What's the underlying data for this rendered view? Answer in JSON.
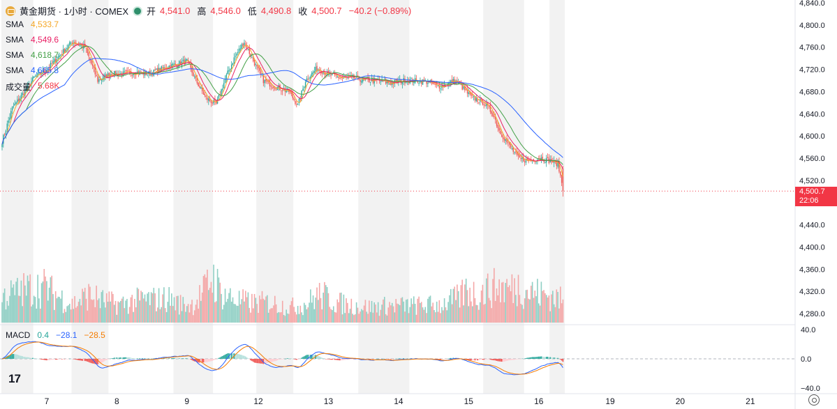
{
  "header": {
    "symbol_title": "黄金期货 · 1小时 · COMEX",
    "ohlc": [
      {
        "k": "开",
        "v": "4,541.0"
      },
      {
        "k": "高",
        "v": "4,546.0"
      },
      {
        "k": "低",
        "v": "4,490.8"
      },
      {
        "k": "收",
        "v": "4,500.7"
      }
    ],
    "change": "−40.2 (−0.89%)"
  },
  "legend": [
    {
      "name": "SMA",
      "value": "4,533.7",
      "color": "#f5a623"
    },
    {
      "name": "SMA",
      "value": "4,549.6",
      "color": "#e91e63"
    },
    {
      "name": "SMA",
      "value": "4,618.7",
      "color": "#43a047"
    },
    {
      "name": "SMA",
      "value": "4,665.8",
      "color": "#2962ff"
    },
    {
      "name": "成交量",
      "value": "5.68K",
      "color": "#f23645"
    }
  ],
  "macd_legend": {
    "name": "MACD",
    "v1": "0.4",
    "v2": "−28.1",
    "v3": "−28.5"
  },
  "last_price": {
    "price": "4,500.7",
    "countdown": "22:06"
  },
  "colors": {
    "up": "#26a69a",
    "down": "#ef5350",
    "vol_up": "#8fcfc4",
    "vol_down": "#f4a7a7",
    "session_shade": "#f2f2f2"
  },
  "chart_data": {
    "type": "candlestick",
    "y_axis": {
      "ticks": [
        "4,840.0",
        "4,800.0",
        "4,760.0",
        "4,720.0",
        "4,680.0",
        "4,640.0",
        "4,600.0",
        "4,560.0",
        "4,520.0",
        "4,480.0",
        "4,440.0",
        "4,400.0",
        "4,360.0",
        "4,320.0",
        "4,280.0"
      ],
      "range": [
        4260,
        4845
      ]
    },
    "macd_axis": {
      "ticks": [
        "40.0",
        "0.0",
        "−40.0"
      ],
      "range": [
        -50,
        45
      ]
    },
    "x_axis": {
      "labels": [
        "7",
        "8",
        "9",
        "12",
        "13",
        "14",
        "15",
        "16",
        "19",
        "20",
        "21"
      ]
    },
    "price_anchors": [
      [
        0,
        4590
      ],
      [
        8,
        4650
      ],
      [
        15,
        4672
      ],
      [
        25,
        4705
      ],
      [
        35,
        4720
      ],
      [
        45,
        4745
      ],
      [
        55,
        4770
      ],
      [
        65,
        4760
      ],
      [
        75,
        4700
      ],
      [
        85,
        4712
      ],
      [
        95,
        4712
      ],
      [
        105,
        4715
      ],
      [
        115,
        4712
      ],
      [
        130,
        4725
      ],
      [
        145,
        4735
      ],
      [
        152,
        4700
      ],
      [
        160,
        4668
      ],
      [
        168,
        4657
      ],
      [
        176,
        4708
      ],
      [
        182,
        4740
      ],
      [
        190,
        4770
      ],
      [
        196,
        4740
      ],
      [
        205,
        4700
      ],
      [
        215,
        4688
      ],
      [
        225,
        4680
      ],
      [
        232,
        4655
      ],
      [
        238,
        4700
      ],
      [
        247,
        4722
      ],
      [
        255,
        4712
      ],
      [
        265,
        4705
      ],
      [
        275,
        4705
      ],
      [
        285,
        4700
      ],
      [
        295,
        4700
      ],
      [
        305,
        4695
      ],
      [
        315,
        4700
      ],
      [
        325,
        4700
      ],
      [
        335,
        4697
      ],
      [
        340,
        4690
      ],
      [
        345,
        4690
      ],
      [
        355,
        4700
      ],
      [
        360,
        4690
      ],
      [
        368,
        4670
      ],
      [
        378,
        4660
      ],
      [
        385,
        4640
      ],
      [
        390,
        4610
      ],
      [
        398,
        4582
      ],
      [
        405,
        4560
      ],
      [
        413,
        4555
      ],
      [
        422,
        4560
      ],
      [
        430,
        4555
      ],
      [
        436,
        4550
      ],
      [
        440,
        4505
      ]
    ],
    "volume_profile": [
      [
        0,
        42
      ],
      [
        20,
        55
      ],
      [
        34,
        58
      ],
      [
        40,
        48
      ],
      [
        55,
        30
      ],
      [
        68,
        45
      ],
      [
        80,
        35
      ],
      [
        92,
        30
      ],
      [
        110,
        38
      ],
      [
        125,
        38
      ],
      [
        130,
        40
      ],
      [
        140,
        30
      ],
      [
        150,
        30
      ],
      [
        158,
        50
      ],
      [
        165,
        76
      ],
      [
        172,
        48
      ],
      [
        182,
        38
      ],
      [
        195,
        32
      ],
      [
        210,
        33
      ],
      [
        225,
        25
      ],
      [
        238,
        30
      ],
      [
        248,
        45
      ],
      [
        255,
        42
      ],
      [
        262,
        33
      ],
      [
        275,
        28
      ],
      [
        290,
        25
      ],
      [
        305,
        28
      ],
      [
        318,
        28
      ],
      [
        330,
        28
      ],
      [
        345,
        30
      ],
      [
        358,
        40
      ],
      [
        365,
        55
      ],
      [
        372,
        45
      ],
      [
        382,
        55
      ],
      [
        390,
        58
      ],
      [
        400,
        55
      ],
      [
        405,
        60
      ],
      [
        412,
        52
      ],
      [
        420,
        48
      ],
      [
        430,
        44
      ],
      [
        440,
        36
      ]
    ],
    "session_shade_ranges": [
      [
        0,
        25
      ],
      [
        55,
        84
      ],
      [
        135,
        166
      ],
      [
        200,
        229
      ],
      [
        280,
        320
      ],
      [
        378,
        410
      ],
      [
        430,
        442
      ]
    ],
    "sma_periods": [
      5,
      10,
      20,
      50
    ],
    "ohlc_last": {
      "open": 4541.0,
      "high": 4546.0,
      "low": 4490.8,
      "close": 4500.7
    }
  }
}
